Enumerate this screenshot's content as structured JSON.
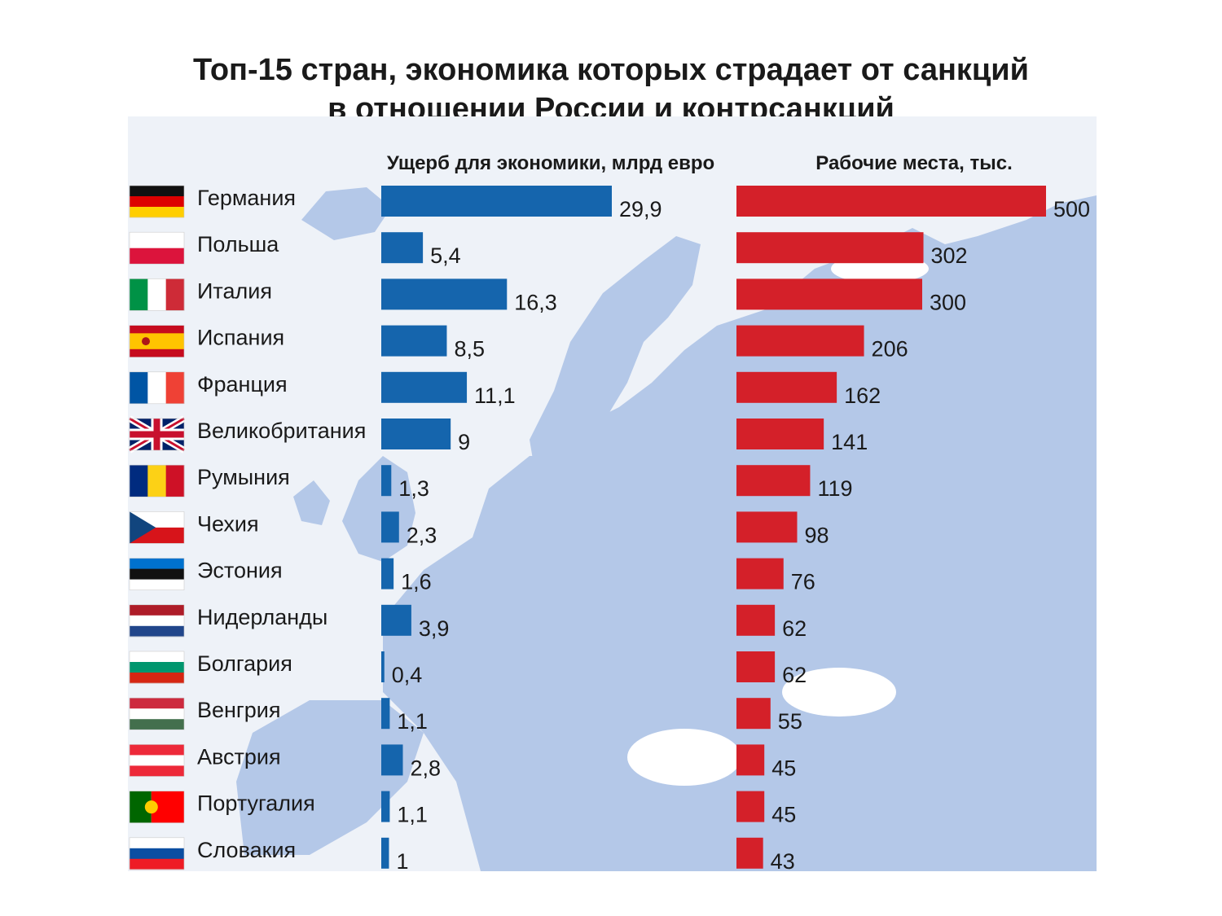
{
  "title": {
    "line1": "Топ-15 стран, экономика которых страдает от санкций",
    "line2": "в отношении России и контрсанкций"
  },
  "colors": {
    "map": "#b4c8e8",
    "damage_bar": "#1565ad",
    "jobs_bar": "#d42029",
    "text": "#1a1a1a"
  },
  "chart_data": [
    {
      "type": "bar",
      "orientation": "horizontal",
      "title": "Ущерб для экономики, млрд евро",
      "categories": [
        "Германия",
        "Польша",
        "Италия",
        "Испания",
        "Франция",
        "Великобритания",
        "Румыния",
        "Чехия",
        "Эстония",
        "Нидерланды",
        "Болгария",
        "Венгрия",
        "Австрия",
        "Португалия",
        "Словакия"
      ],
      "values": [
        29.9,
        5.4,
        16.3,
        8.5,
        11.1,
        9,
        1.3,
        2.3,
        1.6,
        3.9,
        0.4,
        1.1,
        2.8,
        1.1,
        1
      ],
      "labels": [
        "29,9",
        "5,4",
        "16,3",
        "8,5",
        "11,1",
        "9",
        "1,3",
        "2,3",
        "1,6",
        "3,9",
        "0,4",
        "1,1",
        "2,8",
        "1,1",
        "1"
      ],
      "color": "#1565ad"
    },
    {
      "type": "bar",
      "orientation": "horizontal",
      "title": "Рабочие места, тыс.",
      "categories": [
        "Германия",
        "Польша",
        "Италия",
        "Испания",
        "Франция",
        "Великобритания",
        "Румыния",
        "Чехия",
        "Эстония",
        "Нидерланды",
        "Болгария",
        "Венгрия",
        "Австрия",
        "Португалия",
        "Словакия"
      ],
      "values": [
        500,
        302,
        300,
        206,
        162,
        141,
        119,
        98,
        76,
        62,
        62,
        55,
        45,
        45,
        43
      ],
      "labels": [
        "500",
        "302",
        "300",
        "206",
        "162",
        "141",
        "119",
        "98",
        "76",
        "62",
        "62",
        "55",
        "45",
        "45",
        "43"
      ],
      "color": "#d42029"
    }
  ],
  "flags": [
    {
      "icon": "germany-flag-icon",
      "stripes": [
        "#111111",
        "#dd0000",
        "#ffce00"
      ],
      "dir": "h"
    },
    {
      "icon": "poland-flag-icon",
      "stripes": [
        "#ffffff",
        "#dc143c"
      ],
      "dir": "h"
    },
    {
      "icon": "italy-flag-icon",
      "stripes": [
        "#009246",
        "#ffffff",
        "#ce2b37"
      ],
      "dir": "v"
    },
    {
      "icon": "spain-flag-icon",
      "stripes": [
        "#c60b1e",
        "#ffc400",
        "#ffc400",
        "#c60b1e"
      ],
      "dir": "h"
    },
    {
      "icon": "france-flag-icon",
      "stripes": [
        "#0055a4",
        "#ffffff",
        "#ef4135"
      ],
      "dir": "v"
    },
    {
      "icon": "uk-flag-icon",
      "stripes": [
        "#012169"
      ],
      "dir": "uk"
    },
    {
      "icon": "romania-flag-icon",
      "stripes": [
        "#002b7f",
        "#fcd116",
        "#ce1126"
      ],
      "dir": "v"
    },
    {
      "icon": "czech-flag-icon",
      "stripes": [
        "#ffffff",
        "#d7141a"
      ],
      "dir": "cz"
    },
    {
      "icon": "estonia-flag-icon",
      "stripes": [
        "#0072ce",
        "#111111",
        "#ffffff"
      ],
      "dir": "h"
    },
    {
      "icon": "netherlands-flag-icon",
      "stripes": [
        "#ae1c28",
        "#ffffff",
        "#21468b"
      ],
      "dir": "h"
    },
    {
      "icon": "bulgaria-flag-icon",
      "stripes": [
        "#ffffff",
        "#00966e",
        "#d62612"
      ],
      "dir": "h"
    },
    {
      "icon": "hungary-flag-icon",
      "stripes": [
        "#cd2a3e",
        "#ffffff",
        "#436f4d"
      ],
      "dir": "h"
    },
    {
      "icon": "austria-flag-icon",
      "stripes": [
        "#ed2939",
        "#ffffff",
        "#ed2939"
      ],
      "dir": "h"
    },
    {
      "icon": "portugal-flag-icon",
      "stripes": [
        "#006600",
        "#ff0000"
      ],
      "dir": "pt"
    },
    {
      "icon": "slovakia-flag-icon",
      "stripes": [
        "#ffffff",
        "#0b4ea2",
        "#ee1c25"
      ],
      "dir": "h"
    }
  ]
}
